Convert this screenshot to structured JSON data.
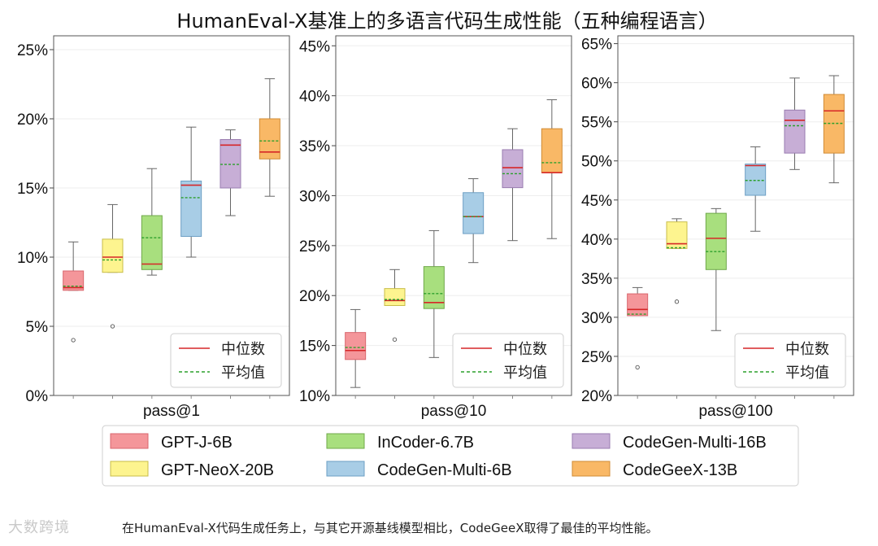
{
  "title": "HumanEval-X基准上的多语言代码生成性能（五种编程语言）",
  "caption": "在HumanEval-X代码生成任务上，与其它开源基线模型相比，CodeGeeX取得了最佳的平均性能。",
  "watermark": "大数跨境",
  "legend_inner": {
    "median": "中位数",
    "mean": "平均值"
  },
  "colors": {
    "median": "#d62728",
    "mean": "#2ca02c"
  },
  "chart_data": [
    {
      "type": "box",
      "xlabel": "pass@1",
      "ylim": [
        0,
        26
      ],
      "yticks": [
        0,
        5,
        10,
        15,
        20,
        25
      ],
      "tick_labels": [
        "0%",
        "5%",
        "10%",
        "15%",
        "20%",
        "25%"
      ],
      "series": [
        {
          "name": "GPT-J-6B",
          "q1": 7.6,
          "q3": 9.0,
          "median": 7.8,
          "mean": 7.9,
          "lo": 7.6,
          "hi": 11.1,
          "outliers": [
            4.0
          ]
        },
        {
          "name": "GPT-NeoX-20B",
          "q1": 8.9,
          "q3": 11.3,
          "median": 10.0,
          "mean": 9.8,
          "lo": 8.9,
          "hi": 13.8,
          "outliers": [
            5.0
          ]
        },
        {
          "name": "InCoder-6.7B",
          "q1": 9.1,
          "q3": 13.0,
          "median": 9.5,
          "mean": 11.4,
          "lo": 8.7,
          "hi": 16.4,
          "outliers": []
        },
        {
          "name": "CodeGen-Multi-6B",
          "q1": 11.5,
          "q3": 15.5,
          "median": 15.2,
          "mean": 14.3,
          "lo": 10.0,
          "hi": 19.4,
          "outliers": []
        },
        {
          "name": "CodeGen-Multi-16B",
          "q1": 15.0,
          "q3": 18.5,
          "median": 18.1,
          "mean": 16.7,
          "lo": 13.0,
          "hi": 19.2,
          "outliers": []
        },
        {
          "name": "CodeGeeX-13B",
          "q1": 17.1,
          "q3": 20.0,
          "median": 17.6,
          "mean": 18.4,
          "lo": 14.4,
          "hi": 22.9,
          "outliers": []
        }
      ]
    },
    {
      "type": "box",
      "xlabel": "pass@10",
      "ylim": [
        10,
        46
      ],
      "yticks": [
        10,
        15,
        20,
        25,
        30,
        35,
        40,
        45
      ],
      "tick_labels": [
        "10%",
        "15%",
        "20%",
        "25%",
        "30%",
        "35%",
        "40%",
        "45%"
      ],
      "series": [
        {
          "name": "GPT-J-6B",
          "q1": 13.6,
          "q3": 16.3,
          "median": 14.5,
          "mean": 14.8,
          "lo": 10.8,
          "hi": 18.6,
          "outliers": []
        },
        {
          "name": "GPT-NeoX-20B",
          "q1": 19.0,
          "q3": 20.7,
          "median": 19.5,
          "mean": 19.6,
          "lo": 19.0,
          "hi": 22.6,
          "outliers": [
            15.6
          ]
        },
        {
          "name": "InCoder-6.7B",
          "q1": 18.7,
          "q3": 22.9,
          "median": 19.3,
          "mean": 20.2,
          "lo": 13.8,
          "hi": 26.5,
          "outliers": []
        },
        {
          "name": "CodeGen-Multi-6B",
          "q1": 26.2,
          "q3": 30.3,
          "median": 27.9,
          "mean": 27.9,
          "lo": 23.3,
          "hi": 31.7,
          "outliers": []
        },
        {
          "name": "CodeGen-Multi-16B",
          "q1": 30.8,
          "q3": 34.6,
          "median": 32.8,
          "mean": 32.2,
          "lo": 25.5,
          "hi": 36.7,
          "outliers": []
        },
        {
          "name": "CodeGeeX-13B",
          "q1": 32.3,
          "q3": 36.7,
          "median": 32.3,
          "mean": 33.3,
          "lo": 25.7,
          "hi": 39.6,
          "outliers": []
        }
      ]
    },
    {
      "type": "box",
      "xlabel": "pass@100",
      "ylim": [
        20,
        66
      ],
      "yticks": [
        20,
        25,
        30,
        35,
        40,
        45,
        50,
        55,
        60,
        65
      ],
      "tick_labels": [
        "20%",
        "25%",
        "30%",
        "35%",
        "40%",
        "45%",
        "50%",
        "55%",
        "60%",
        "65%"
      ],
      "series": [
        {
          "name": "GPT-J-6B",
          "q1": 30.2,
          "q3": 33.0,
          "median": 31.0,
          "mean": 30.4,
          "lo": 30.2,
          "hi": 33.8,
          "outliers": [
            23.6
          ]
        },
        {
          "name": "GPT-NeoX-20B",
          "q1": 38.8,
          "q3": 42.2,
          "median": 39.4,
          "mean": 38.9,
          "lo": 38.8,
          "hi": 42.6,
          "outliers": [
            32.0
          ]
        },
        {
          "name": "InCoder-6.7B",
          "q1": 36.1,
          "q3": 43.3,
          "median": 40.1,
          "mean": 38.4,
          "lo": 28.3,
          "hi": 43.9,
          "outliers": []
        },
        {
          "name": "CodeGen-Multi-6B",
          "q1": 45.6,
          "q3": 49.6,
          "median": 49.4,
          "mean": 47.5,
          "lo": 41.0,
          "hi": 51.8,
          "outliers": []
        },
        {
          "name": "CodeGen-Multi-16B",
          "q1": 51.0,
          "q3": 56.5,
          "median": 55.2,
          "mean": 54.5,
          "lo": 48.9,
          "hi": 60.6,
          "outliers": []
        },
        {
          "name": "CodeGeeX-13B",
          "q1": 51.0,
          "q3": 58.5,
          "median": 56.4,
          "mean": 54.8,
          "lo": 47.2,
          "hi": 60.9,
          "outliers": []
        }
      ]
    }
  ],
  "legend": [
    {
      "name": "GPT-J-6B",
      "fill": "#f4969a",
      "stroke": "#d9666d"
    },
    {
      "name": "GPT-NeoX-20B",
      "fill": "#fdf48f",
      "stroke": "#c8bd4a"
    },
    {
      "name": "InCoder-6.7B",
      "fill": "#a8df7e",
      "stroke": "#6fa84a"
    },
    {
      "name": "CodeGen-Multi-6B",
      "fill": "#a8cde6",
      "stroke": "#6d9fc4"
    },
    {
      "name": "CodeGen-Multi-16B",
      "fill": "#c7aed6",
      "stroke": "#9a7cb0"
    },
    {
      "name": "CodeGeeX-13B",
      "fill": "#f9b866",
      "stroke": "#d08b35"
    }
  ]
}
